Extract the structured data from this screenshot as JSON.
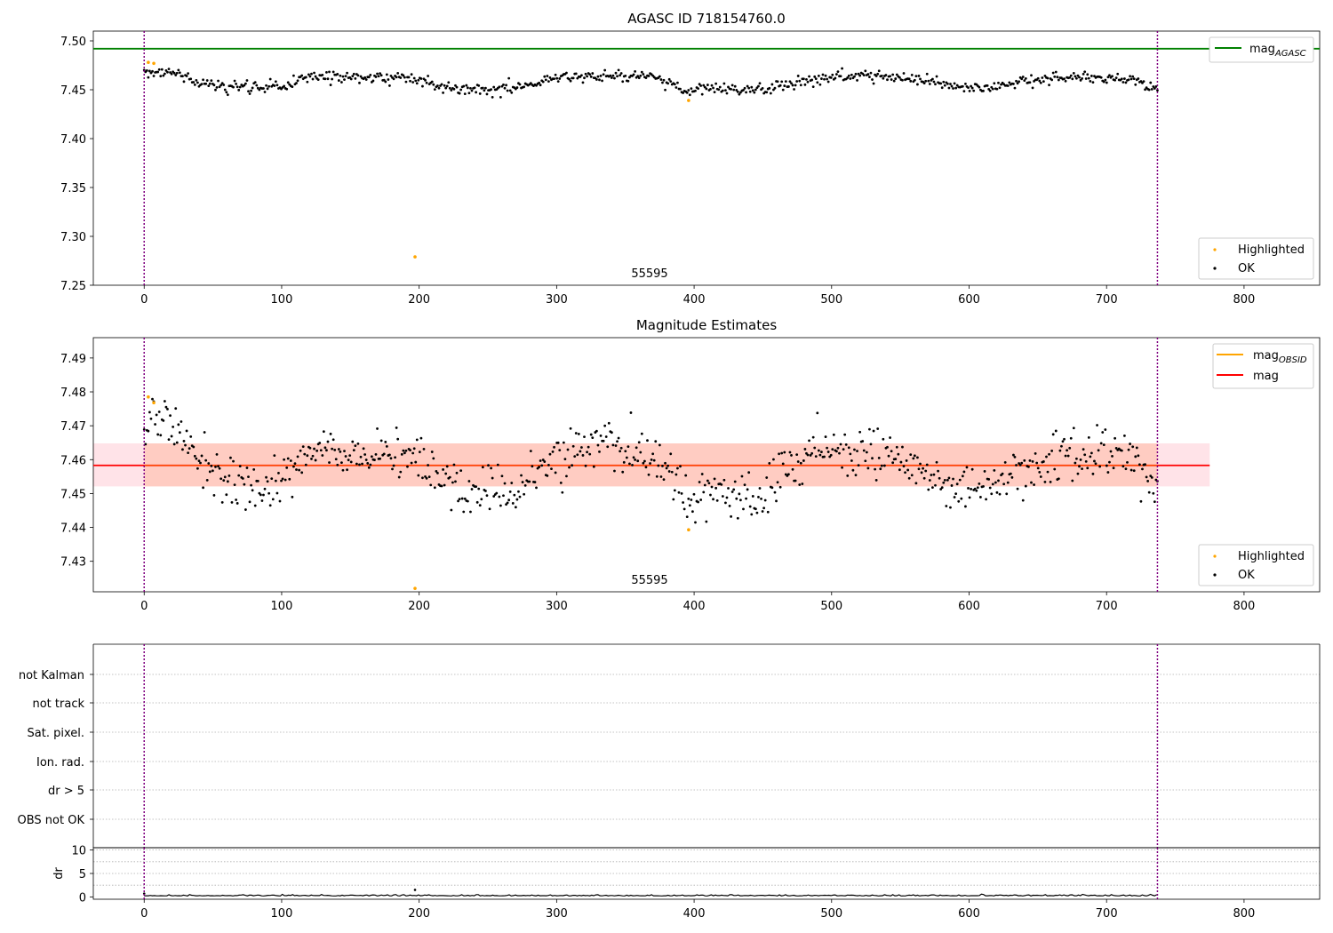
{
  "colors": {
    "ok": "#000000",
    "highlighted": "#ffa500",
    "agasc_line": "#008000",
    "obsid_line": "#ffa500",
    "mean_line": "#ff0000",
    "band_fill": "#ffc0cb",
    "band_inner": "#ffa07a",
    "obs_boundary": "#800080",
    "grid": "#b0b0b0"
  },
  "chart_data": [
    {
      "id": "agasc",
      "type": "scatter",
      "title": "AGASC ID 718154760.0",
      "xlabel": "",
      "ylabel": "",
      "xlim": [
        -37,
        855
      ],
      "ylim": [
        7.25,
        7.51
      ],
      "xticks": [
        "0",
        "100",
        "200",
        "300",
        "400",
        "500",
        "600",
        "700",
        "800"
      ],
      "yticks": [
        "7.25",
        "7.30",
        "7.35",
        "7.40",
        "7.45",
        "7.50"
      ],
      "grid": false,
      "obs_boundaries": [
        0,
        737
      ],
      "obs_label": {
        "text": "55595",
        "x": 368
      },
      "mag_agasc": 7.492,
      "legend_lines": [
        {
          "label": "mag",
          "sub": "AGASC",
          "color_key": "agasc_line",
          "position": "top-right"
        }
      ],
      "legend_points": [
        {
          "label": "Highlighted",
          "color_key": "highlighted"
        },
        {
          "label": "OK",
          "color_key": "ok"
        }
      ],
      "highlighted": [
        [
          3,
          7.478
        ],
        [
          7,
          7.477
        ],
        [
          197,
          7.279
        ],
        [
          396,
          7.439
        ]
      ],
      "ok_trend": [
        [
          0,
          7.47
        ],
        [
          20,
          7.468
        ],
        [
          40,
          7.457
        ],
        [
          60,
          7.453
        ],
        [
          80,
          7.452
        ],
        [
          100,
          7.453
        ],
        [
          120,
          7.463
        ],
        [
          140,
          7.465
        ],
        [
          160,
          7.462
        ],
        [
          180,
          7.463
        ],
        [
          200,
          7.461
        ],
        [
          220,
          7.453
        ],
        [
          240,
          7.45
        ],
        [
          260,
          7.451
        ],
        [
          280,
          7.455
        ],
        [
          300,
          7.462
        ],
        [
          320,
          7.464
        ],
        [
          340,
          7.463
        ],
        [
          360,
          7.464
        ],
        [
          380,
          7.459
        ],
        [
          395,
          7.448
        ],
        [
          410,
          7.452
        ],
        [
          430,
          7.449
        ],
        [
          450,
          7.45
        ],
        [
          470,
          7.456
        ],
        [
          500,
          7.463
        ],
        [
          520,
          7.464
        ],
        [
          540,
          7.463
        ],
        [
          560,
          7.461
        ],
        [
          580,
          7.455
        ],
        [
          600,
          7.451
        ],
        [
          620,
          7.452
        ],
        [
          640,
          7.459
        ],
        [
          660,
          7.461
        ],
        [
          680,
          7.463
        ],
        [
          700,
          7.461
        ],
        [
          720,
          7.459
        ],
        [
          737,
          7.452
        ]
      ],
      "ok_count": 740,
      "ok_noise": 0.003
    },
    {
      "id": "estimates",
      "type": "scatter",
      "title": "Magnitude Estimates",
      "xlabel": "",
      "ylabel": "",
      "xlim": [
        -37,
        855
      ],
      "ylim": [
        7.421,
        7.496
      ],
      "xticks": [
        "0",
        "100",
        "200",
        "300",
        "400",
        "500",
        "600",
        "700",
        "800"
      ],
      "yticks": [
        "7.43",
        "7.44",
        "7.45",
        "7.46",
        "7.47",
        "7.48",
        "7.49"
      ],
      "grid": false,
      "obs_boundaries": [
        0,
        737
      ],
      "obs_label": {
        "text": "55595",
        "x": 368
      },
      "mag_mean": 7.4583,
      "mag_band": [
        7.4521,
        7.4648
      ],
      "band_x_range": [
        -37,
        775
      ],
      "inner_band_x_range": [
        0,
        737
      ],
      "legend_lines": [
        {
          "label": "mag",
          "sub": "OBSID",
          "color_key": "obsid_line",
          "position": "top-right"
        },
        {
          "label": "mag",
          "sub": "",
          "color_key": "mean_line",
          "position": "top-right"
        }
      ],
      "legend_points": [
        {
          "label": "Highlighted",
          "color_key": "highlighted"
        },
        {
          "label": "OK",
          "color_key": "ok"
        }
      ],
      "highlighted": [
        [
          3,
          7.4785
        ],
        [
          7,
          7.4768
        ],
        [
          197,
          7.422
        ],
        [
          396,
          7.4393
        ]
      ],
      "ok_trend": [
        [
          0,
          7.471
        ],
        [
          10,
          7.472
        ],
        [
          20,
          7.469
        ],
        [
          30,
          7.465
        ],
        [
          45,
          7.458
        ],
        [
          60,
          7.454
        ],
        [
          80,
          7.452
        ],
        [
          100,
          7.454
        ],
        [
          115,
          7.461
        ],
        [
          130,
          7.464
        ],
        [
          150,
          7.462
        ],
        [
          170,
          7.461
        ],
        [
          195,
          7.461
        ],
        [
          210,
          7.456
        ],
        [
          230,
          7.451
        ],
        [
          250,
          7.451
        ],
        [
          270,
          7.45
        ],
        [
          285,
          7.455
        ],
        [
          300,
          7.462
        ],
        [
          320,
          7.463
        ],
        [
          340,
          7.463
        ],
        [
          360,
          7.462
        ],
        [
          375,
          7.46
        ],
        [
          385,
          7.455
        ],
        [
          395,
          7.448
        ],
        [
          410,
          7.452
        ],
        [
          425,
          7.449
        ],
        [
          445,
          7.449
        ],
        [
          465,
          7.456
        ],
        [
          485,
          7.462
        ],
        [
          505,
          7.464
        ],
        [
          525,
          7.462
        ],
        [
          545,
          7.462
        ],
        [
          565,
          7.457
        ],
        [
          585,
          7.451
        ],
        [
          600,
          7.45
        ],
        [
          620,
          7.451
        ],
        [
          635,
          7.459
        ],
        [
          655,
          7.46
        ],
        [
          675,
          7.462
        ],
        [
          700,
          7.461
        ],
        [
          720,
          7.459
        ],
        [
          737,
          7.452
        ]
      ],
      "ok_count": 740,
      "ok_noise": 0.0035
    },
    {
      "id": "flags",
      "type": "scatter",
      "title": "",
      "xlabel": "",
      "ylabel": "",
      "xlim": [
        -37,
        855
      ],
      "ytick_labels": [
        "not Kalman",
        "not track",
        "Sat. pixel.",
        "Ion. rad.",
        "dr > 5",
        "OBS not OK"
      ],
      "grid": true,
      "obs_boundaries": [
        0,
        737
      ]
    },
    {
      "id": "dr",
      "type": "line",
      "title": "",
      "xlabel": "",
      "ylabel": "dr",
      "xlim": [
        -37,
        855
      ],
      "ylim": [
        -0.5,
        10.5
      ],
      "xticks": [
        "0",
        "100",
        "200",
        "300",
        "400",
        "500",
        "600",
        "700",
        "800"
      ],
      "yticks": [
        "0",
        "5",
        "10"
      ],
      "grid": true,
      "obs_boundaries": [
        0,
        737
      ],
      "dr_spikes": [
        [
          0,
          0.7
        ],
        [
          197,
          1.5
        ]
      ],
      "dr_typical": 0.2
    }
  ]
}
